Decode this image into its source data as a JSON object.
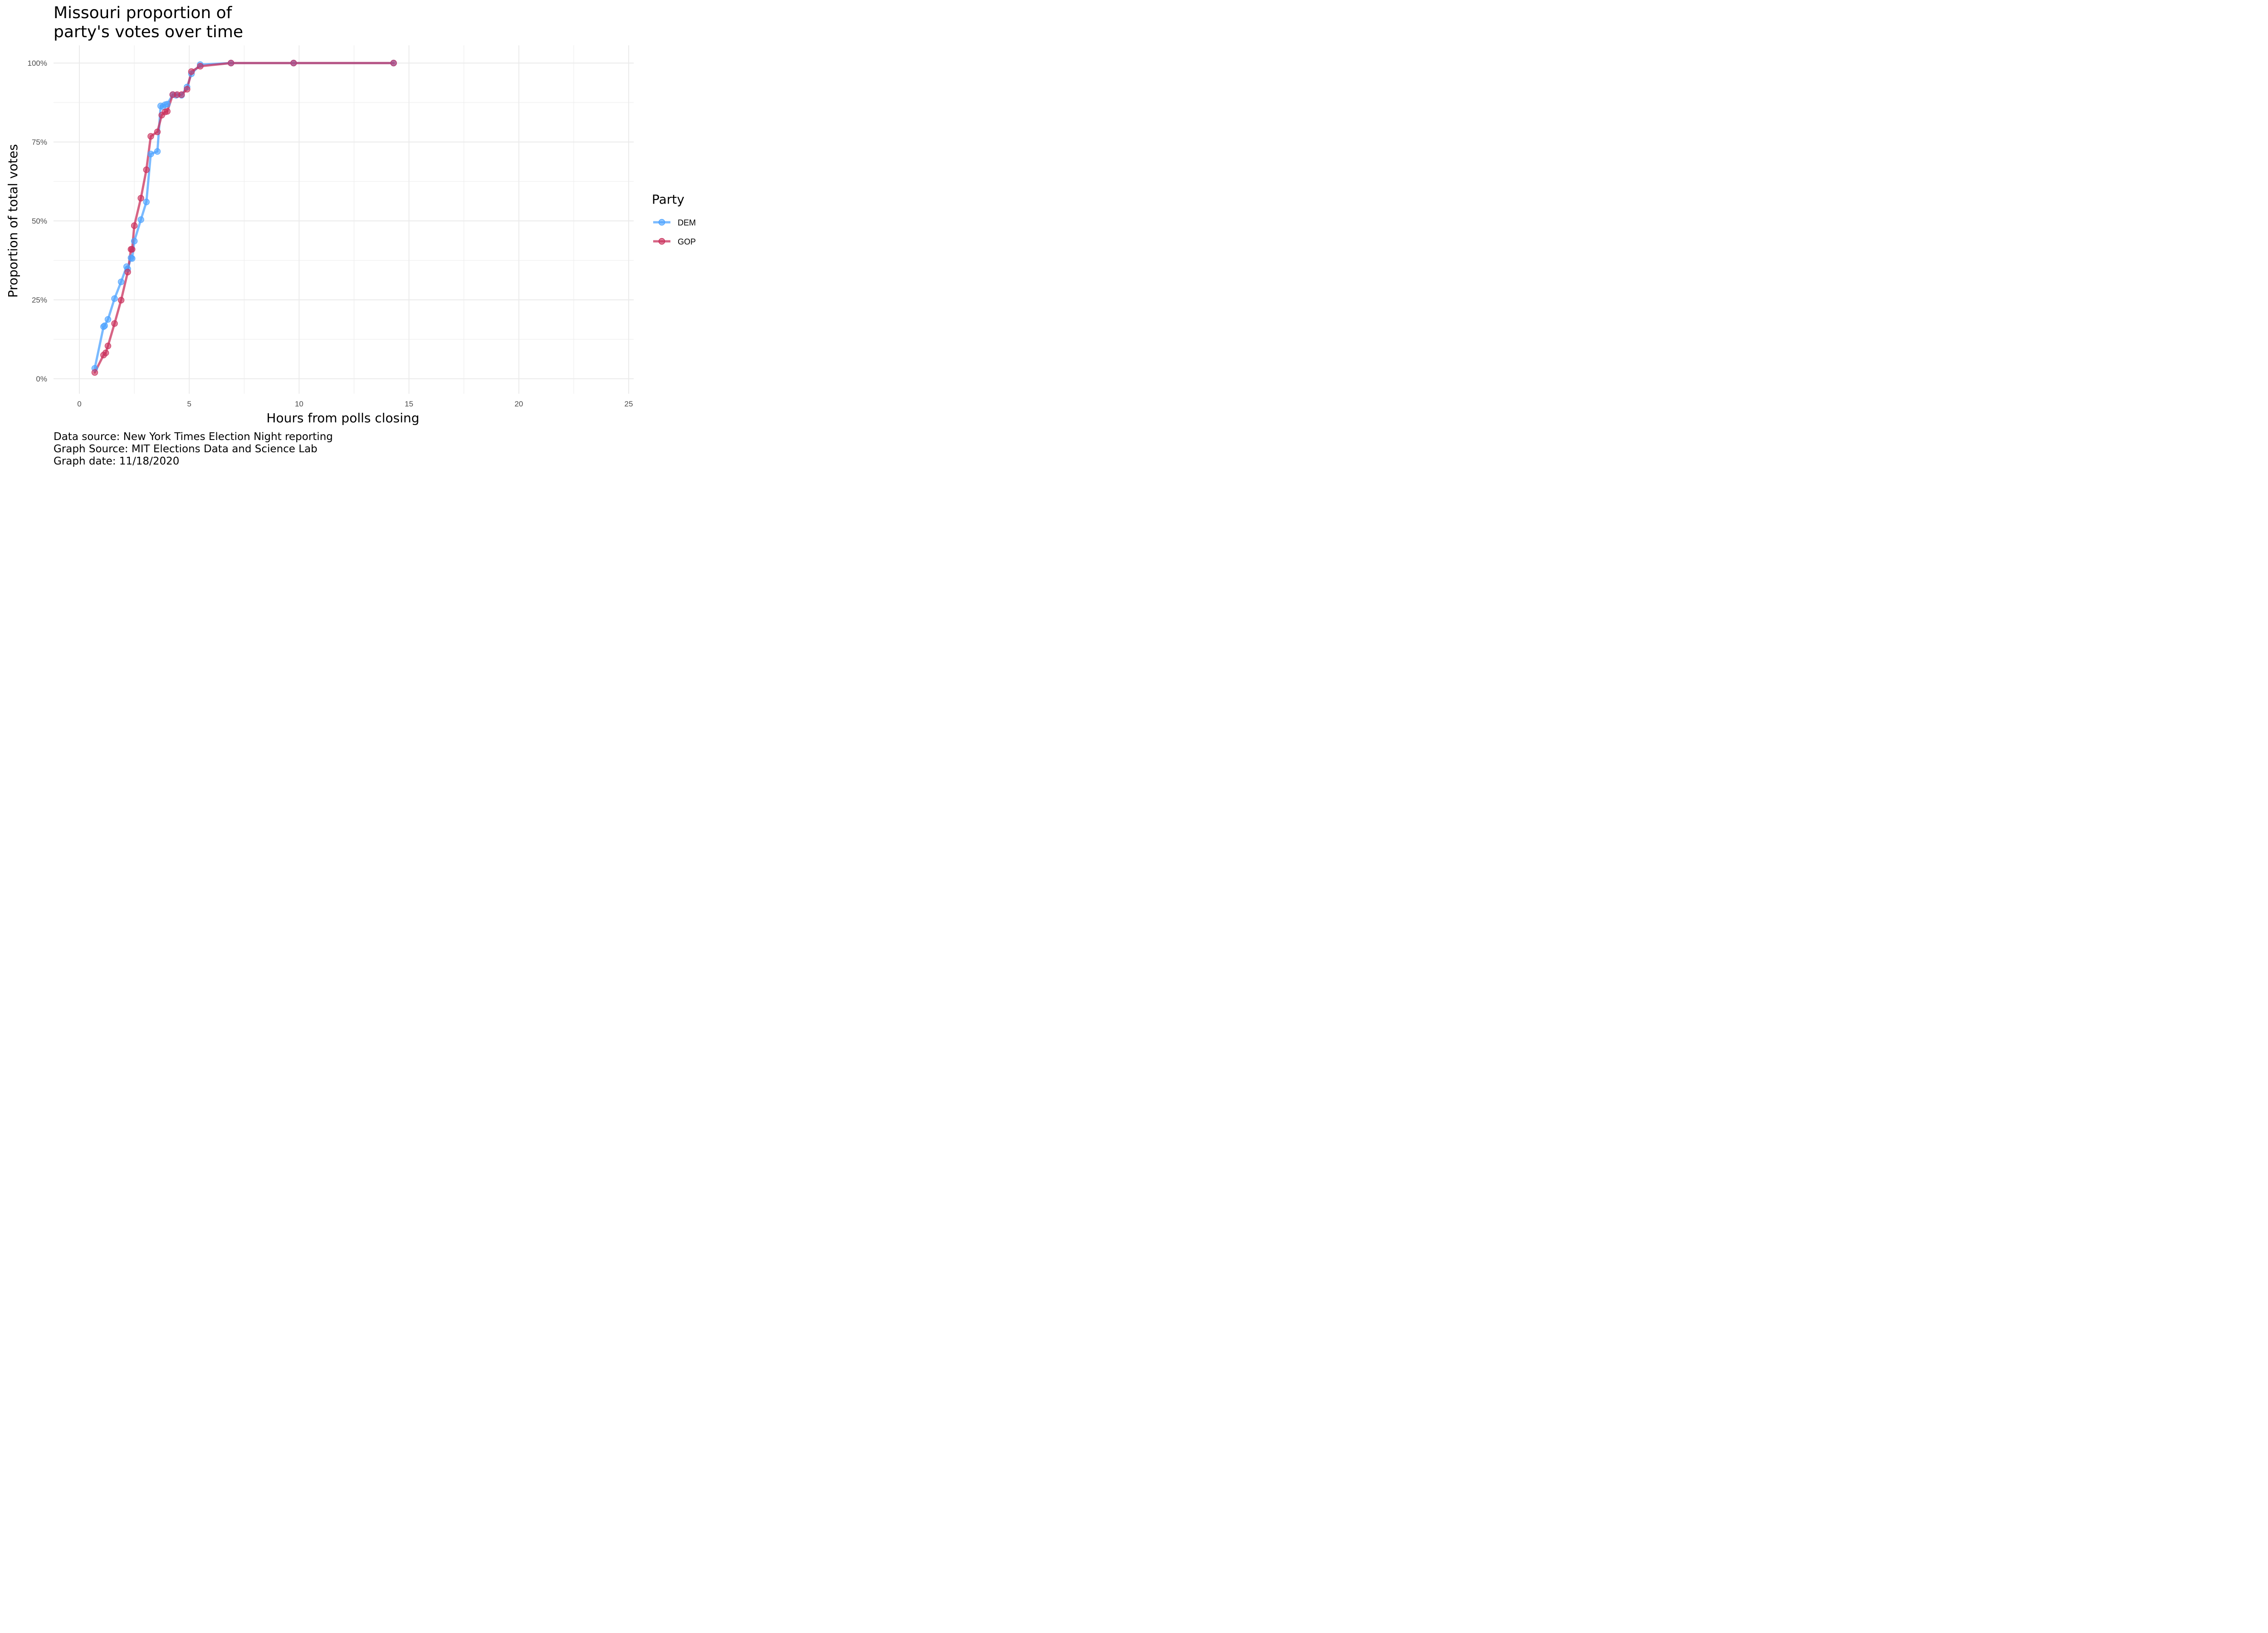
{
  "chart_data": {
    "type": "line",
    "title": "Missouri proportion of\nparty's votes over time",
    "xlabel": "Hours from polls closing",
    "ylabel": "Proportion of total votes",
    "xlim": [
      0,
      25
    ],
    "ylim": [
      0,
      1
    ],
    "xticks": [
      "0",
      "5",
      "10",
      "15",
      "20",
      "25"
    ],
    "yticks": [
      "0%",
      "25%",
      "50%",
      "75%",
      "100%"
    ],
    "grid": true,
    "legend": {
      "title": "Party",
      "placement": "right"
    },
    "series": [
      {
        "name": "DEM",
        "color": "#4DA3FF",
        "points": [
          [
            0.7,
            0.033
          ],
          [
            1.1,
            0.165
          ],
          [
            1.15,
            0.168
          ],
          [
            1.3,
            0.188
          ],
          [
            1.6,
            0.254
          ],
          [
            1.9,
            0.307
          ],
          [
            2.15,
            0.355
          ],
          [
            2.2,
            0.348
          ],
          [
            2.35,
            0.383
          ],
          [
            2.4,
            0.381
          ],
          [
            2.5,
            0.436
          ],
          [
            2.8,
            0.504
          ],
          [
            3.05,
            0.56
          ],
          [
            3.25,
            0.712
          ],
          [
            3.55,
            0.72
          ],
          [
            3.7,
            0.864
          ],
          [
            3.8,
            0.862
          ],
          [
            3.9,
            0.868
          ],
          [
            4.0,
            0.87
          ],
          [
            4.25,
            0.9
          ],
          [
            4.4,
            0.898
          ],
          [
            4.65,
            0.898
          ],
          [
            4.9,
            0.924
          ],
          [
            5.1,
            0.966
          ],
          [
            5.5,
            0.995
          ],
          [
            6.9,
            1.0
          ],
          [
            9.75,
            1.0
          ],
          [
            14.3,
            1.0
          ]
        ]
      },
      {
        "name": "GOP",
        "color": "#C9305C",
        "points": [
          [
            0.7,
            0.02
          ],
          [
            1.1,
            0.075
          ],
          [
            1.2,
            0.082
          ],
          [
            1.3,
            0.104
          ],
          [
            1.6,
            0.175
          ],
          [
            1.9,
            0.249
          ],
          [
            2.2,
            0.338
          ],
          [
            2.35,
            0.41
          ],
          [
            2.4,
            0.41
          ],
          [
            2.5,
            0.485
          ],
          [
            2.8,
            0.572
          ],
          [
            3.05,
            0.662
          ],
          [
            3.25,
            0.768
          ],
          [
            3.55,
            0.782
          ],
          [
            3.75,
            0.835
          ],
          [
            3.9,
            0.845
          ],
          [
            4.0,
            0.847
          ],
          [
            4.25,
            0.9
          ],
          [
            4.45,
            0.9
          ],
          [
            4.65,
            0.9
          ],
          [
            4.9,
            0.917
          ],
          [
            5.1,
            0.973
          ],
          [
            5.5,
            0.99
          ],
          [
            6.9,
            1.0
          ],
          [
            9.75,
            1.0
          ],
          [
            14.3,
            1.0
          ]
        ]
      }
    ]
  },
  "caption": {
    "line1": "Data source: New York Times Election Night reporting",
    "line2": "Graph Source: MIT Elections Data and Science Lab",
    "line3": "Graph date: 11/18/2020"
  }
}
